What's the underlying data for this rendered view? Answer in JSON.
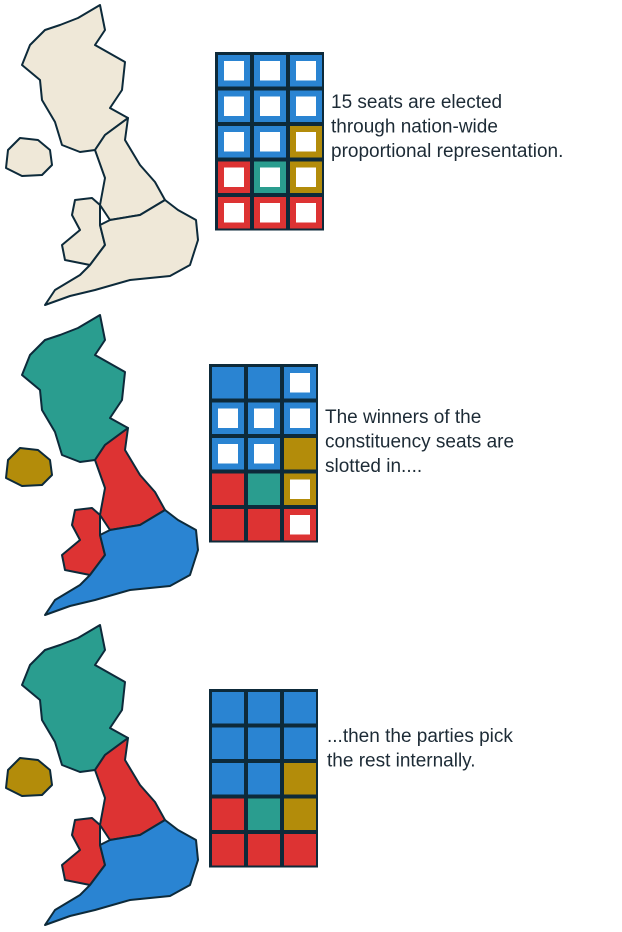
{
  "panels": [
    {
      "caption": [
        "15 seats are elected",
        "through nation-wide",
        "proportional representation."
      ]
    },
    {
      "caption": [
        "The winners of the",
        "constituency seats are",
        "slotted in...."
      ]
    },
    {
      "caption": [
        "...then the parties pick",
        "the rest internally."
      ]
    }
  ]
}
